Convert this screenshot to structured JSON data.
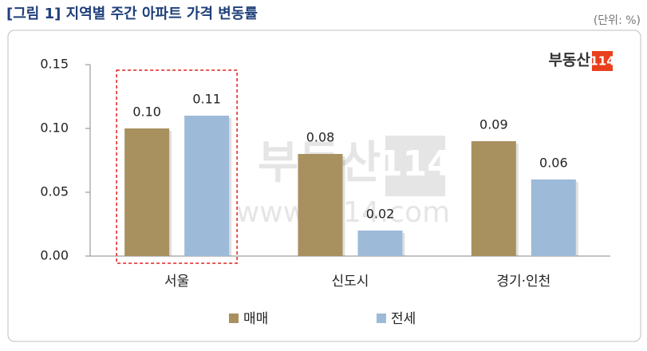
{
  "chart_data": {
    "type": "bar",
    "title": "[그림 1] 지역별 주간 아파트 가격 변동률",
    "unit": "(단위: %)",
    "logo": {
      "brand": "부동산",
      "number": "114"
    },
    "watermark": {
      "brand": "부동산",
      "number": "114",
      "url": "www.r114.com"
    },
    "categories": [
      "서울",
      "신도시",
      "경기·인천"
    ],
    "series": [
      {
        "name": "매매",
        "color": "#a8915f",
        "values": [
          0.1,
          0.08,
          0.09
        ],
        "value_labels": [
          "0.10",
          "0.08",
          "0.09"
        ]
      },
      {
        "name": "전세",
        "color": "#9dbad9",
        "values": [
          0.11,
          0.02,
          0.06
        ],
        "value_labels": [
          "0.11",
          "0.02",
          "0.06"
        ]
      }
    ],
    "ylim": [
      0,
      0.15
    ],
    "yticks": [
      {
        "value": 0,
        "label": "0.00"
      },
      {
        "value": 0.05,
        "label": "0.05"
      },
      {
        "value": 0.1,
        "label": "0.10"
      },
      {
        "value": 0.15,
        "label": "0.15"
      }
    ],
    "grid": false,
    "highlight_category": 0,
    "legend": "bottom"
  }
}
